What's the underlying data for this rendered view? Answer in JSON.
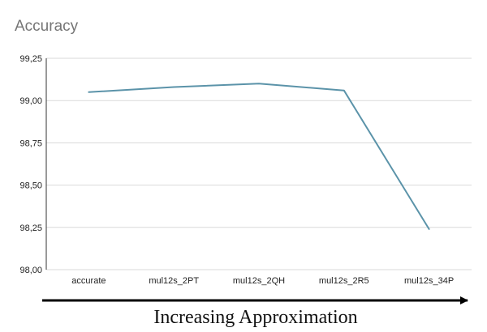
{
  "chart_data": {
    "type": "line",
    "title": "Accuracy",
    "categories": [
      "accurate",
      "mul12s_2PT",
      "mul12s_2QH",
      "mul12s_2R5",
      "mul12s_34P"
    ],
    "series": [
      {
        "values": [
          99.05,
          99.08,
          99.1,
          99.06,
          98.24
        ],
        "color": "#5b93a9"
      }
    ],
    "ylim": [
      98.0,
      99.25
    ],
    "yticks": [
      98.0,
      98.25,
      98.5,
      98.75,
      99.0,
      99.25
    ],
    "ytick_labels": [
      "98,00",
      "98,25",
      "98,50",
      "98,75",
      "99,00",
      "99,25"
    ],
    "grid": true,
    "xlabel": "Increasing Approximation"
  }
}
